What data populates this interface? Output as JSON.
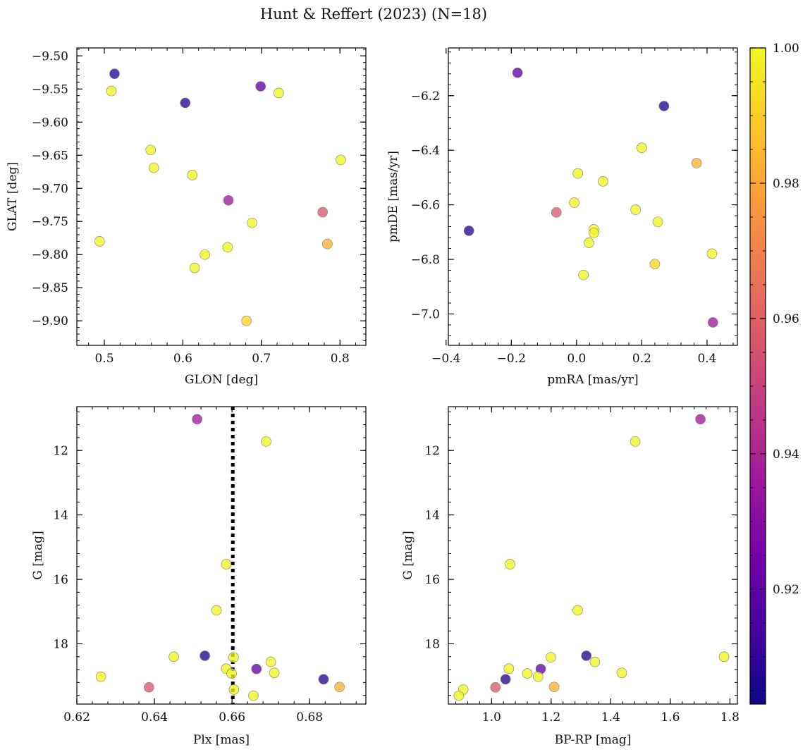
{
  "figure": {
    "title": "Hunt & Reffert (2023) (N=18)",
    "colormap": [
      "#0d0887",
      "#46039f",
      "#7201a8",
      "#9c179e",
      "#bd3786",
      "#d8576b",
      "#ed7953",
      "#fb9f3a",
      "#fdca26",
      "#f0f921"
    ],
    "point_alpha": 0.78
  },
  "colorbar": {
    "range": [
      0.903,
      1.0
    ],
    "ticks": [
      0.92,
      0.94,
      0.96,
      0.98,
      1.0
    ],
    "tick_labels": [
      "0.92",
      "0.94",
      "0.96",
      "0.98",
      "1.00"
    ]
  },
  "chart_data": [
    {
      "type": "scatter",
      "id": "glon-glat",
      "xlabel": "GLON [deg]",
      "ylabel": "GLAT [deg]",
      "xlim": [
        0.465,
        0.833
      ],
      "ylim": [
        -9.937,
        -9.488
      ],
      "xticks": [
        0.5,
        0.6,
        0.7,
        0.8
      ],
      "xtick_labels": [
        "0.5",
        "0.6",
        "0.7",
        "0.8"
      ],
      "yticks": [
        -9.5,
        -9.55,
        -9.6,
        -9.65,
        -9.7,
        -9.75,
        -9.8,
        -9.85,
        -9.9
      ],
      "ytick_labels": [
        "−9.50",
        "−9.55",
        "−9.60",
        "−9.65",
        "−9.70",
        "−9.75",
        "−9.80",
        "−9.85",
        "−9.90"
      ],
      "x": [
        0.513,
        0.603,
        0.699,
        0.509,
        0.722,
        0.559,
        0.563,
        0.612,
        0.801,
        0.658,
        0.778,
        0.688,
        0.494,
        0.784,
        0.657,
        0.628,
        0.615,
        0.681
      ],
      "y": [
        -9.527,
        -9.571,
        -9.546,
        -9.553,
        -9.556,
        -9.642,
        -9.669,
        -9.68,
        -9.657,
        -9.718,
        -9.736,
        -9.752,
        -9.78,
        -9.784,
        -9.789,
        -9.8,
        -9.82,
        -9.9
      ],
      "c": [
        0.907,
        0.908,
        0.921,
        0.999,
        0.999,
        0.999,
        0.999,
        0.999,
        0.999,
        0.936,
        0.958,
        0.999,
        0.999,
        0.983,
        0.999,
        0.999,
        0.999,
        0.992
      ]
    },
    {
      "type": "scatter",
      "id": "pmra-pmde",
      "xlabel": "pmRA [mas/yr]",
      "ylabel": "pmDE [mas/yr]",
      "xlim": [
        -0.393,
        0.493
      ],
      "ylim": [
        -7.115,
        -6.025
      ],
      "xticks": [
        -0.4,
        -0.2,
        0.0,
        0.2,
        0.4
      ],
      "xtick_labels": [
        "−0.4",
        "−0.2",
        "0.0",
        "0.2",
        "0.4"
      ],
      "yticks": [
        -6.2,
        -6.4,
        -6.6,
        -6.8,
        -7.0
      ],
      "ytick_labels": [
        "−6.2",
        "−6.4",
        "−6.6",
        "−6.8",
        "−7.0"
      ],
      "x": [
        -0.181,
        0.268,
        -0.33,
        0.2,
        0.368,
        0.004,
        0.081,
        -0.007,
        -0.062,
        0.181,
        0.249,
        0.053,
        0.053,
        0.038,
        0.415,
        0.24,
        0.021,
        0.418
      ],
      "y": [
        -6.116,
        -6.238,
        -6.695,
        -6.391,
        -6.447,
        -6.485,
        -6.514,
        -6.592,
        -6.628,
        -6.618,
        -6.662,
        -6.69,
        -6.703,
        -6.739,
        -6.779,
        -6.817,
        -6.857,
        -7.031
      ],
      "c": [
        0.921,
        0.907,
        0.908,
        0.999,
        0.983,
        0.999,
        0.999,
        0.999,
        0.958,
        0.999,
        0.999,
        0.999,
        0.999,
        0.999,
        0.999,
        0.992,
        0.999,
        0.936
      ]
    },
    {
      "type": "scatter",
      "id": "plx-g",
      "xlabel": "Plx [mas]",
      "ylabel": "G [mag]",
      "xlim": [
        0.62,
        0.6945
      ],
      "ylim": [
        19.87,
        10.64
      ],
      "xticks": [
        0.62,
        0.64,
        0.66,
        0.68
      ],
      "xtick_labels": [
        "0.62",
        "0.64",
        "0.66",
        "0.68"
      ],
      "yticks": [
        12,
        14,
        16,
        18
      ],
      "ytick_labels": [
        "12",
        "14",
        "16",
        "18"
      ],
      "vline": 0.6602,
      "x": [
        0.651,
        0.6688,
        0.6585,
        0.656,
        0.645,
        0.653,
        0.6604,
        0.67,
        0.6585,
        0.6663,
        0.6599,
        0.6709,
        0.6836,
        0.6262,
        0.6386,
        0.6877,
        0.6605,
        0.6655
      ],
      "y": [
        11.03,
        11.72,
        15.53,
        16.96,
        18.4,
        18.37,
        18.42,
        18.56,
        18.77,
        18.78,
        18.92,
        18.9,
        19.1,
        19.02,
        19.35,
        19.34,
        19.42,
        19.61
      ],
      "c": [
        0.936,
        0.999,
        0.999,
        0.999,
        0.999,
        0.907,
        0.999,
        0.999,
        0.999,
        0.921,
        0.999,
        0.999,
        0.908,
        0.999,
        0.958,
        0.983,
        0.999,
        0.999
      ]
    },
    {
      "type": "scatter",
      "id": "bprp-g",
      "xlabel": "BP-RP [mag]",
      "ylabel": "G [mag]",
      "xlim": [
        0.855,
        1.825
      ],
      "ylim": [
        19.87,
        10.64
      ],
      "xticks": [
        1.0,
        1.2,
        1.4,
        1.6,
        1.8
      ],
      "xtick_labels": [
        "1.0",
        "1.2",
        "1.4",
        "1.6",
        "1.8"
      ],
      "yticks": [
        12,
        14,
        16,
        18
      ],
      "ytick_labels": [
        "12",
        "14",
        "16",
        "18"
      ],
      "x": [
        1.701,
        1.482,
        1.062,
        1.289,
        1.78,
        1.318,
        1.199,
        1.347,
        1.058,
        1.165,
        1.12,
        1.437,
        1.047,
        1.156,
        1.013,
        1.21,
        0.905,
        0.89
      ],
      "y": [
        11.03,
        11.72,
        15.53,
        16.96,
        18.4,
        18.37,
        18.42,
        18.56,
        18.77,
        18.78,
        18.92,
        18.9,
        19.1,
        19.02,
        19.35,
        19.34,
        19.42,
        19.61
      ],
      "c": [
        0.936,
        0.999,
        0.999,
        0.999,
        0.999,
        0.907,
        0.999,
        0.999,
        0.999,
        0.921,
        0.999,
        0.999,
        0.908,
        0.999,
        0.958,
        0.983,
        0.999,
        0.999
      ]
    }
  ]
}
